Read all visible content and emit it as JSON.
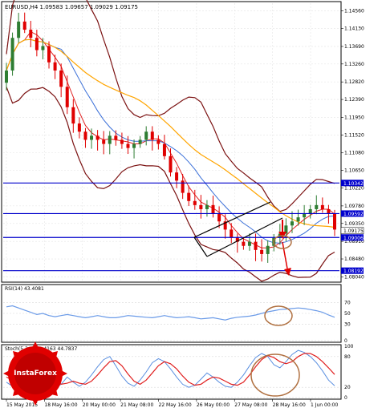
{
  "header": {
    "symbol_line": "EURUSD,H4  1.09583 1.09657 1.09029 1.09175"
  },
  "price_axis": {
    "ticks": [
      "1.14560",
      "1.14130",
      "1.13690",
      "1.13260",
      "1.12820",
      "1.12390",
      "1.11950",
      "1.11520",
      "1.11080",
      "1.10650",
      "1.10220",
      "1.09780",
      "1.09350",
      "1.08910",
      "1.08480",
      "1.08040"
    ],
    "range": [
      1.0795,
      1.1475
    ]
  },
  "levels": {
    "color": "#0000cc",
    "lines": [
      {
        "label": "1.10342",
        "value": 1.10342
      },
      {
        "label": "1.09592",
        "value": 1.09592
      },
      {
        "label": "1.09006",
        "value": 1.09006
      },
      {
        "label": "1.08192",
        "value": 1.08192
      }
    ]
  },
  "current_price": {
    "label": "1.09175",
    "value": 1.09175
  },
  "rsi_panel": {
    "title": "RSI(14) 43.4081",
    "ticks": [
      "70",
      "50",
      "30",
      "0"
    ],
    "range": [
      0,
      100
    ]
  },
  "stoch_panel": {
    "title": "Stoch(5,3,3) 23.4163 44.7837",
    "ticks": [
      "100",
      "80",
      "20",
      "0"
    ],
    "range": [
      0,
      100
    ]
  },
  "time_axis": {
    "labels": [
      "15 May 2015",
      "18 May 16:00",
      "20 May 00:00",
      "21 May 08:00",
      "22 May 16:00",
      "26 May 00:00",
      "27 May 08:00",
      "28 May 16:00",
      "1 Jun 00:00"
    ]
  },
  "watermark": {
    "text": "InstaForex"
  },
  "colors": {
    "bull": "#2e7d32",
    "bear": "#e00000",
    "bollinger": "#7b1111",
    "ma_fast": "#e02020",
    "ma_mid": "#3a6fd8",
    "ma_slow": "#ffa500",
    "rsi_line": "#6b9be8",
    "stoch_main": "#5a8fe0",
    "stoch_signal": "#e02020",
    "highlight_circle": "#b07040",
    "triangle": "#000000"
  },
  "chart_data": {
    "type": "candlestick",
    "symbol": "EURUSD",
    "timeframe": "H4",
    "bar_open": 1.09583,
    "bar_high": 1.09657,
    "bar_low": 1.09029,
    "bar_close": 1.09175,
    "close_series": [
      1.131,
      1.139,
      1.143,
      1.141,
      1.139,
      1.136,
      1.137,
      1.133,
      1.131,
      1.127,
      1.122,
      1.118,
      1.116,
      1.114,
      1.115,
      1.114,
      1.113,
      1.115,
      1.114,
      1.113,
      1.112,
      1.113,
      1.114,
      1.116,
      1.114,
      1.113,
      1.11,
      1.106,
      1.104,
      1.101,
      1.099,
      1.098,
      1.097,
      1.098,
      1.096,
      1.094,
      1.092,
      1.09,
      1.089,
      1.088,
      1.089,
      1.087,
      1.086,
      1.088,
      1.09,
      1.091,
      1.093,
      1.094,
      1.095,
      1.096,
      1.097,
      1.098,
      1.097,
      1.096,
      1.092
    ],
    "rsi": {
      "last": 43.4081,
      "values": [
        62,
        64,
        60,
        56,
        52,
        48,
        50,
        46,
        44,
        46,
        48,
        46,
        44,
        42,
        44,
        46,
        44,
        42,
        42,
        44,
        46,
        45,
        44,
        43,
        42,
        44,
        46,
        44,
        42,
        43,
        44,
        42,
        40,
        41,
        42,
        40,
        38,
        41,
        43,
        44,
        45,
        47,
        50,
        53,
        55,
        57,
        58,
        59,
        60,
        59,
        57,
        55,
        52,
        47,
        43
      ]
    },
    "stochastic": {
      "main_last": 23.4163,
      "signal_last": 44.7837,
      "main": [
        30,
        22,
        38,
        55,
        72,
        64,
        48,
        32,
        18,
        26,
        40,
        30,
        22,
        30,
        44,
        60,
        74,
        80,
        62,
        42,
        28,
        22,
        34,
        50,
        68,
        76,
        70,
        56,
        40,
        26,
        20,
        24,
        36,
        48,
        40,
        30,
        22,
        20,
        30,
        44,
        62,
        78,
        86,
        80,
        64,
        58,
        70,
        84,
        92,
        88,
        80,
        68,
        52,
        34,
        23
      ],
      "signal": [
        40,
        34,
        32,
        38,
        52,
        60,
        60,
        50,
        36,
        26,
        28,
        32,
        28,
        26,
        32,
        44,
        58,
        70,
        72,
        62,
        46,
        32,
        26,
        34,
        48,
        62,
        70,
        66,
        56,
        42,
        30,
        24,
        26,
        34,
        40,
        38,
        32,
        26,
        24,
        30,
        44,
        60,
        74,
        82,
        78,
        70,
        66,
        70,
        80,
        86,
        86,
        80,
        70,
        58,
        45
      ]
    },
    "levels": [
      1.10342,
      1.09592,
      1.09006,
      1.08192
    ]
  }
}
